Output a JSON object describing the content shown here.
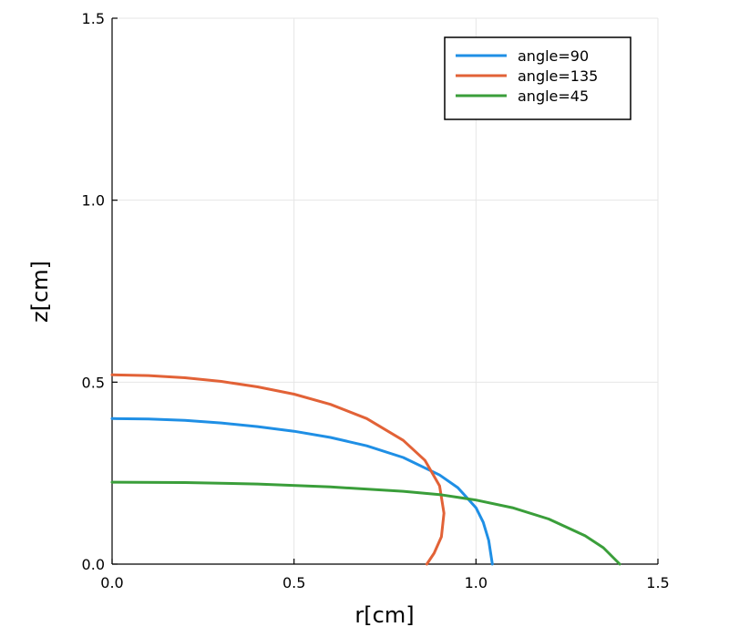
{
  "chart_data": {
    "type": "line",
    "xlabel": "r[cm]",
    "ylabel": "z[cm]",
    "xlim": [
      0.0,
      1.5
    ],
    "ylim": [
      0.0,
      1.5
    ],
    "x_ticks": [
      "0.0",
      "0.5",
      "1.0",
      "1.5"
    ],
    "y_ticks": [
      "0.0",
      "0.5",
      "1.0",
      "1.5"
    ],
    "grid": true,
    "legend_position": "top-right",
    "series": [
      {
        "name": "angle=90",
        "color": "#1f8fe5",
        "points": [
          [
            0.0,
            0.4
          ],
          [
            0.1,
            0.399
          ],
          [
            0.2,
            0.395
          ],
          [
            0.3,
            0.388
          ],
          [
            0.4,
            0.378
          ],
          [
            0.5,
            0.365
          ],
          [
            0.6,
            0.348
          ],
          [
            0.7,
            0.325
          ],
          [
            0.8,
            0.293
          ],
          [
            0.9,
            0.245
          ],
          [
            0.95,
            0.21
          ],
          [
            1.0,
            0.155
          ],
          [
            1.02,
            0.115
          ],
          [
            1.035,
            0.065
          ],
          [
            1.045,
            0.0
          ]
        ]
      },
      {
        "name": "angle=135",
        "color": "#e26237",
        "points": [
          [
            0.0,
            0.52
          ],
          [
            0.1,
            0.518
          ],
          [
            0.2,
            0.512
          ],
          [
            0.3,
            0.502
          ],
          [
            0.4,
            0.487
          ],
          [
            0.5,
            0.467
          ],
          [
            0.6,
            0.439
          ],
          [
            0.7,
            0.4
          ],
          [
            0.8,
            0.34
          ],
          [
            0.86,
            0.285
          ],
          [
            0.9,
            0.215
          ],
          [
            0.912,
            0.14
          ],
          [
            0.905,
            0.075
          ],
          [
            0.885,
            0.03
          ],
          [
            0.865,
            0.0
          ]
        ]
      },
      {
        "name": "angle=45",
        "color": "#3a9e3a",
        "points": [
          [
            0.0,
            0.225
          ],
          [
            0.2,
            0.224
          ],
          [
            0.4,
            0.22
          ],
          [
            0.6,
            0.212
          ],
          [
            0.8,
            0.2
          ],
          [
            0.9,
            0.191
          ],
          [
            1.0,
            0.176
          ],
          [
            1.1,
            0.155
          ],
          [
            1.2,
            0.124
          ],
          [
            1.3,
            0.078
          ],
          [
            1.35,
            0.045
          ],
          [
            1.395,
            0.0
          ]
        ]
      }
    ]
  }
}
